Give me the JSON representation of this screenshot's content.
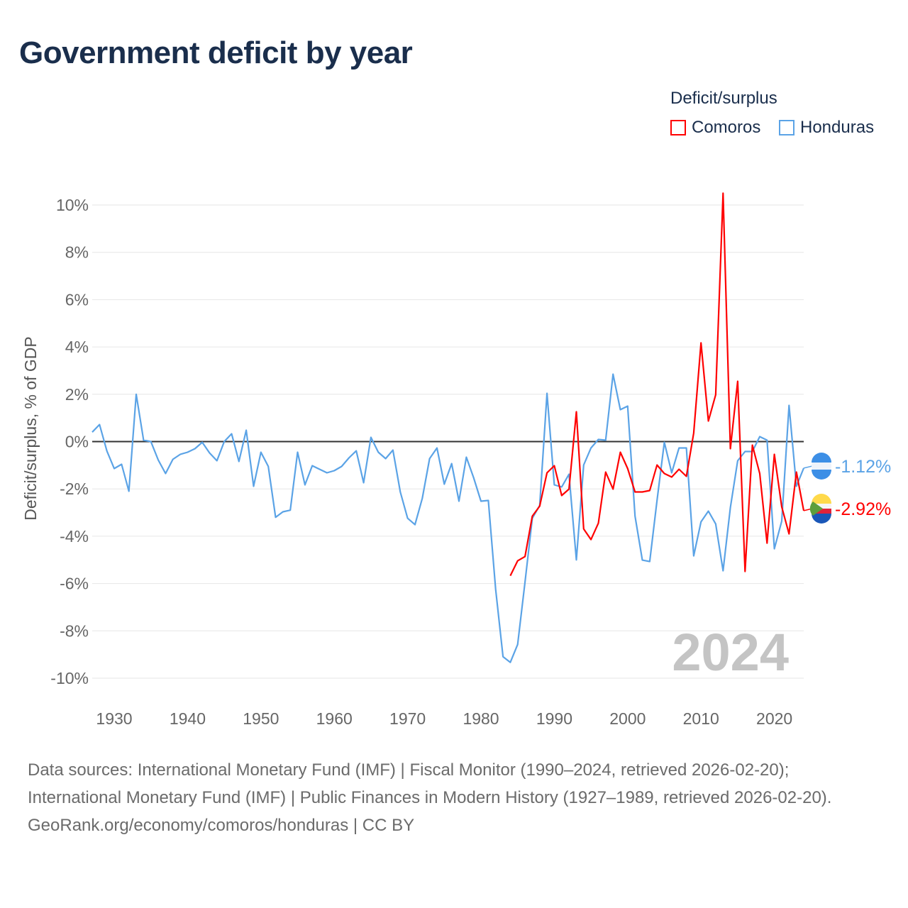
{
  "title": "Government deficit by year",
  "legend": {
    "title": "Deficit/surplus",
    "items": [
      {
        "name": "Comoros",
        "color": "#ff0000"
      },
      {
        "name": "Honduras",
        "color": "#5ba3e6"
      }
    ]
  },
  "chart_data": {
    "type": "line",
    "title": "Government deficit by year",
    "ylabel": "Deficit/surplus, % of GDP",
    "xlabel": "",
    "xlim": [
      1927,
      2024
    ],
    "ylim": [
      -10,
      10
    ],
    "xticks": [
      1930,
      1940,
      1950,
      1960,
      1970,
      1980,
      1990,
      2000,
      2010,
      2020
    ],
    "yticks": [
      10,
      8,
      6,
      4,
      2,
      0,
      -2,
      -4,
      -6,
      -8,
      -10
    ],
    "ytick_labels": [
      "10%",
      "8%",
      "6%",
      "4%",
      "2%",
      "0%",
      "-2%",
      "-4%",
      "-6%",
      "-8%",
      "-10%"
    ],
    "grid": true,
    "year_watermark": "2024",
    "series": [
      {
        "name": "Honduras",
        "color": "#5ba3e6",
        "start": 1927,
        "end_label": "-1.12%",
        "values": [
          0.4,
          0.72,
          -0.4,
          -1.14,
          -0.96,
          -2.1,
          2.0,
          0.06,
          0.0,
          -0.78,
          -1.35,
          -0.75,
          -0.54,
          -0.45,
          -0.3,
          -0.03,
          -0.48,
          -0.81,
          0.0,
          0.33,
          -0.84,
          0.48,
          -1.89,
          -0.45,
          -1.05,
          -3.2,
          -2.97,
          -2.9,
          -0.45,
          -1.83,
          -1.02,
          -1.17,
          -1.32,
          -1.23,
          -1.05,
          -0.69,
          -0.39,
          -1.74,
          0.18,
          -0.45,
          -0.72,
          -0.36,
          -2.13,
          -3.24,
          -3.51,
          -2.4,
          -0.72,
          -0.27,
          -1.8,
          -0.93,
          -2.52,
          -0.66,
          -1.53,
          -2.52,
          -2.49,
          -6.24,
          -9.09,
          -9.33,
          -8.58,
          -5.94,
          -3.24,
          -2.7,
          2.04,
          -1.83,
          -1.92,
          -1.38,
          -5.0,
          -0.99,
          -0.27,
          0.09,
          0.06,
          2.85,
          1.35,
          1.5,
          -3.15,
          -5.01,
          -5.07,
          -2.49,
          -0.03,
          -1.32,
          -0.27,
          -0.27,
          -4.83,
          -3.39,
          -2.94,
          -3.48,
          -5.46,
          -2.79,
          -0.81,
          -0.42,
          -0.42,
          0.21,
          0.06,
          -4.53,
          -3.36,
          1.53,
          -1.89,
          -1.12
        ]
      },
      {
        "name": "Comoros",
        "color": "#ff0000",
        "start": 1984,
        "end_label": "-2.92%",
        "values": [
          -5.67,
          -5.04,
          -4.86,
          -3.15,
          -2.73,
          -1.32,
          -1.02,
          -2.28,
          -2.01,
          1.26,
          -3.69,
          -4.14,
          -3.45,
          -1.29,
          -2.01,
          -0.45,
          -1.14,
          -2.13,
          -2.13,
          -2.07,
          -0.99,
          -1.35,
          -1.5,
          -1.17,
          -1.47,
          0.36,
          4.17,
          0.87,
          1.98,
          10.5,
          -0.3,
          2.55,
          -5.49,
          -0.15,
          -1.35,
          -4.29,
          -0.54,
          -2.76,
          -3.9,
          -1.29,
          -2.92
        ]
      }
    ]
  },
  "footer": {
    "sources": "Data sources: International Monetary Fund (IMF) | Fiscal Monitor (1990–2024, retrieved 2026-02-20); International Monetary Fund (IMF) | Public Finances in Modern History (1927–1989, retrieved 2026-02-20).",
    "link": "GeoRank.org/economy/comoros/honduras | CC BY"
  }
}
